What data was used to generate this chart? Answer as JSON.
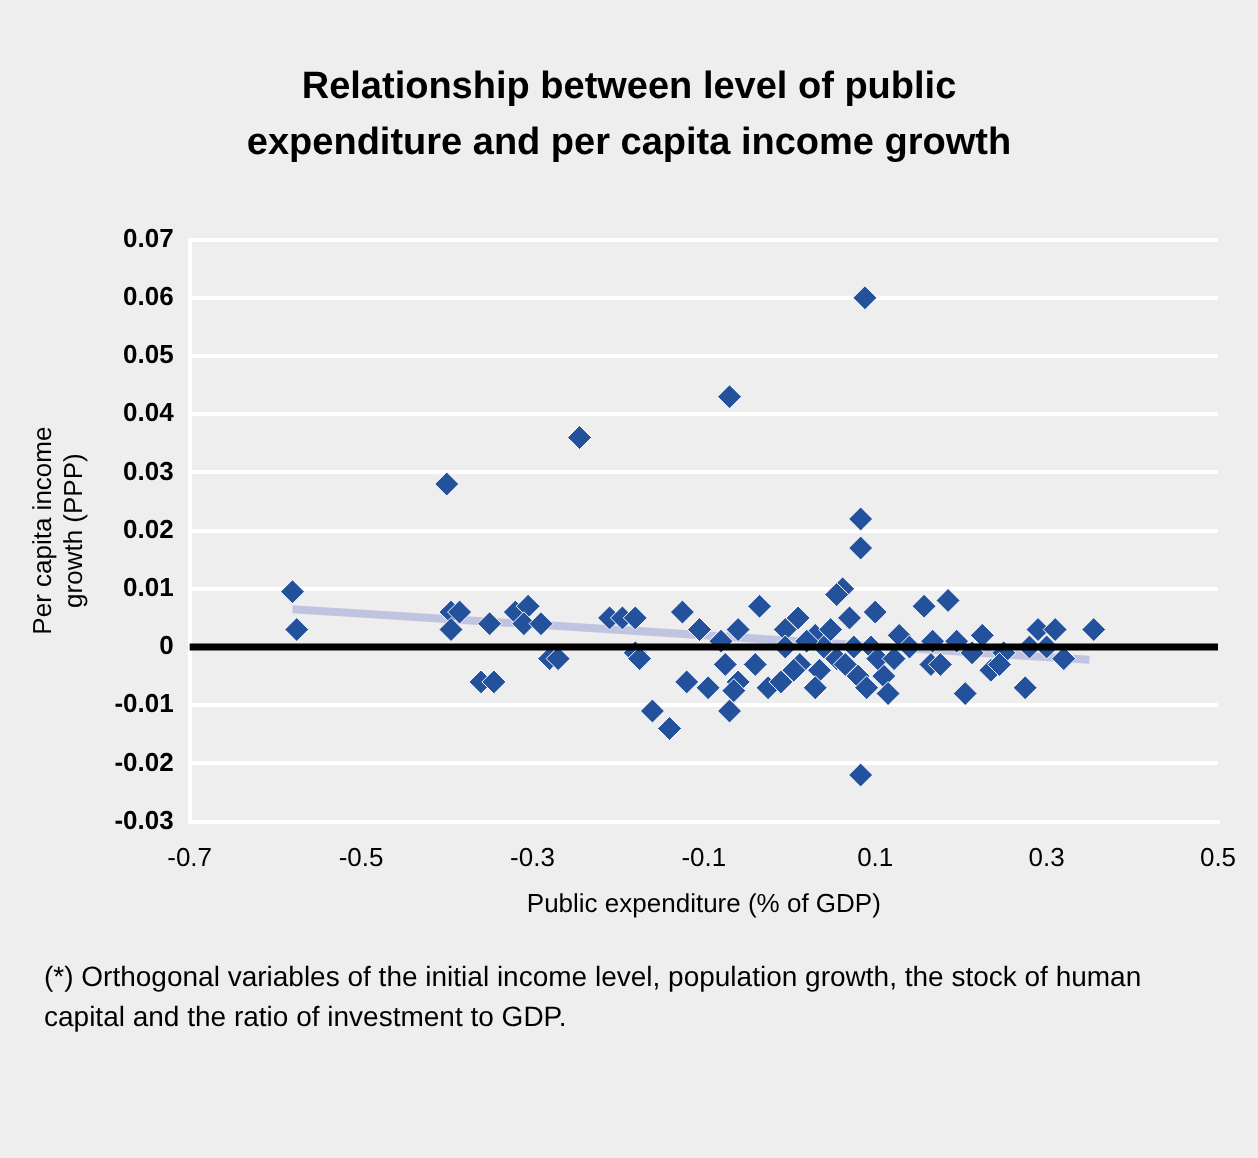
{
  "chart_data": {
    "type": "scatter",
    "title": "Relationship between level of public expenditure and per capita income growth",
    "xlabel": "Public expenditure (% of GDP)",
    "ylabel": "Per capita income growth (PPP)",
    "annotations": [
      "(*) Orthogonal variables of the initial income level, population growth, the stock of human capital and the ratio of investment to GDP."
    ],
    "xlim": [
      -0.7,
      0.5
    ],
    "xticks": [
      -0.7,
      -0.5,
      -0.3,
      -0.1,
      0.1,
      0.3,
      0.5
    ],
    "ylim": [
      -0.03,
      0.07
    ],
    "yticks": [
      -0.03,
      -0.02,
      -0.01,
      0,
      0.01,
      0.02,
      0.03,
      0.04,
      0.05,
      0.06,
      0.07
    ],
    "grid": "y",
    "legend": false,
    "ref_lines": [
      {
        "axis": "y",
        "value": 0,
        "color": "#000000"
      }
    ],
    "series": [
      {
        "marker": "diamond",
        "color": "#24519b",
        "x": [
          -0.58,
          -0.575,
          -0.4,
          -0.395,
          -0.385,
          -0.395,
          -0.36,
          -0.345,
          -0.35,
          -0.32,
          -0.305,
          -0.31,
          -0.29,
          -0.28,
          -0.27,
          -0.245,
          -0.21,
          -0.195,
          -0.18,
          -0.18,
          -0.175,
          -0.16,
          -0.14,
          -0.125,
          -0.12,
          -0.105,
          -0.095,
          -0.08,
          -0.075,
          -0.07,
          -0.07,
          -0.06,
          -0.04,
          -0.035,
          -0.025,
          -0.01,
          -0.06,
          -0.005,
          0.01,
          0.012,
          0.03,
          0.04,
          0.055,
          0.062,
          0.07,
          0.083,
          0.083,
          0.088,
          0.083,
          0.075,
          0.08,
          0.1,
          0.11,
          0.115,
          0.128,
          0.14,
          0.157,
          0.165,
          0.185,
          0.195,
          0.205,
          0.225,
          0.235,
          0.25,
          0.275,
          0.29,
          0.31,
          0.32,
          0.355,
          -0.005,
          0.005,
          0.02,
          0.035,
          0.048,
          0.055,
          0.065,
          0.095,
          0.103,
          0.122,
          0.167,
          0.176,
          0.213,
          0.245,
          0.28,
          0.3,
          0.09,
          0.03,
          -0.065
        ],
        "values": [
          0.0095,
          0.003,
          0.028,
          0.006,
          0.006,
          0.003,
          -0.006,
          -0.006,
          0.004,
          0.006,
          0.007,
          0.004,
          0.004,
          -0.002,
          -0.002,
          0.036,
          0.005,
          0.005,
          0.005,
          -0.001,
          -0.002,
          -0.011,
          -0.014,
          0.006,
          -0.006,
          0.003,
          -0.007,
          0.001,
          -0.003,
          0.043,
          -0.011,
          -0.006,
          -0.003,
          0.007,
          -0.007,
          -0.006,
          0.003,
          0.003,
          0.005,
          -0.003,
          0.002,
          0,
          -0.002,
          0.01,
          0.005,
          0.022,
          0.017,
          0.06,
          -0.022,
          0,
          -0.005,
          0.006,
          -0.005,
          -0.008,
          0.002,
          0,
          0.007,
          -0.003,
          0.008,
          0.001,
          -0.008,
          0.002,
          -0.004,
          -0.001,
          -0.007,
          0.003,
          0.003,
          -0.002,
          0.003,
          0,
          -0.004,
          0.001,
          -0.004,
          0.003,
          0.009,
          -0.003,
          0,
          -0.002,
          -0.002,
          0.001,
          -0.003,
          -0.001,
          -0.003,
          0,
          0,
          -0.007,
          -0.007,
          -0.0075
        ]
      },
      {
        "type": "line",
        "marker": "none",
        "color": "#c0c4e0",
        "x": [
          -0.58,
          0.35
        ],
        "values": [
          0.0065,
          -0.0022
        ]
      }
    ]
  }
}
